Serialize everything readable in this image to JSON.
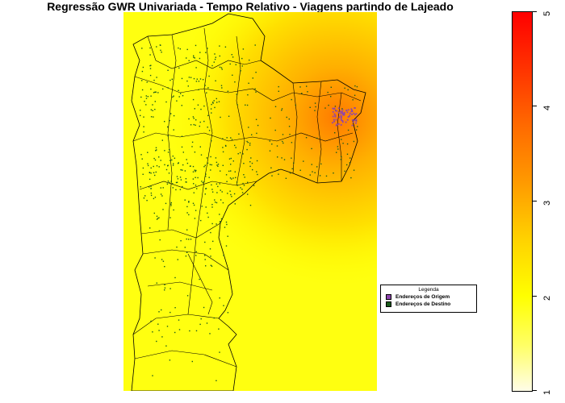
{
  "title": "Regressão GWR Univariada - Tempo Relativo - Viagens partindo de Lajeado",
  "legend": {
    "title": "Legenda",
    "items": [
      {
        "label": "Endereços de Origem",
        "color": "#8e44ad"
      },
      {
        "label": "Endereços de Destino",
        "color": "#1a5c1a"
      }
    ]
  },
  "color_scale": {
    "ticks": [
      "1",
      "2",
      "3",
      "4",
      "5"
    ],
    "min": 1,
    "max": 5,
    "colors": [
      "#fffde8",
      "#ffff00",
      "#ff9a00",
      "#ff0000"
    ]
  },
  "map": {
    "background_low": "#ffff00",
    "background_high": "#ff7a00",
    "boundary_color": "#000000"
  }
}
